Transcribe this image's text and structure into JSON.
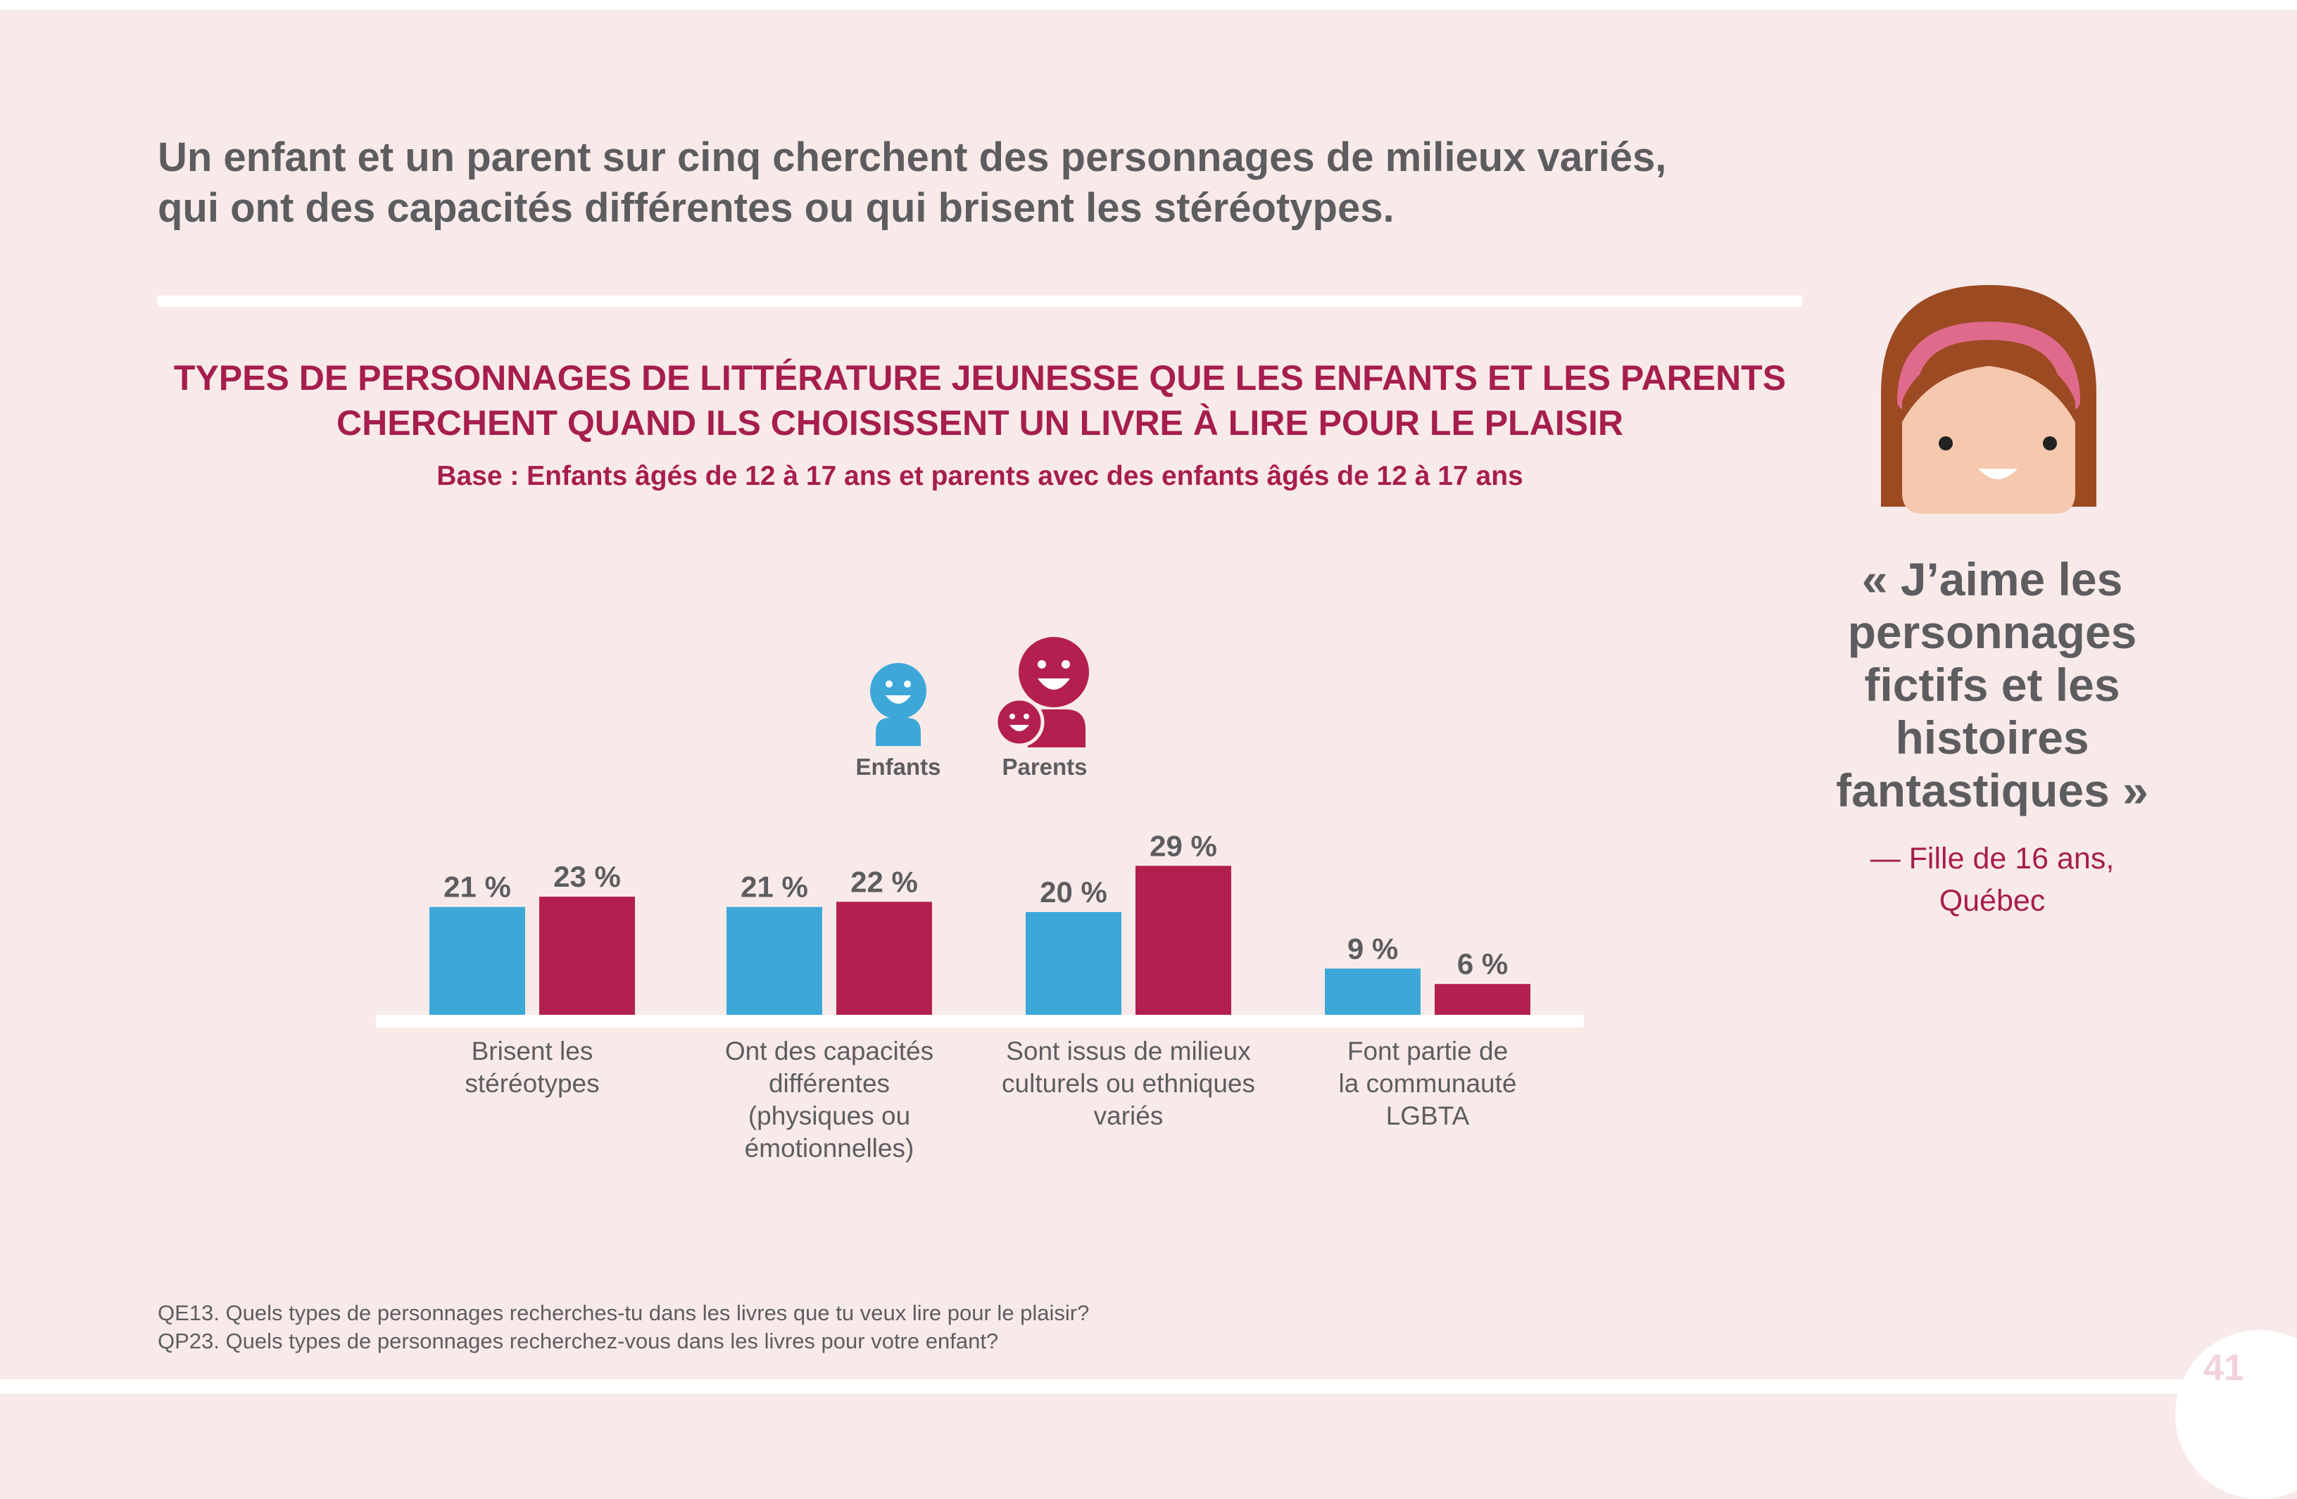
{
  "headline": {
    "line1": "Un enfant et un parent sur cinq cherchent des personnages de milieux variés,",
    "line2": "qui ont des capacités différentes ou qui brisent les stéréotypes."
  },
  "legend": {
    "enfants": "Enfants",
    "parents": "Parents"
  },
  "colors": {
    "enfants": "#3da8d8",
    "parents": "#b3204f",
    "title": "#a61e4d",
    "text": "#5d5d5f",
    "background": "#f9eaea"
  },
  "quote": {
    "lines": [
      "« J’aime les",
      "personnages",
      "fictifs et les",
      "histoires",
      "fantastiques »"
    ],
    "attribution_line1": "— Fille de 16 ans,",
    "attribution_line2": "Québec"
  },
  "footnotes": {
    "qe13": "QE13. Quels types de personnages recherches-tu dans les livres que tu veux lire pour le plaisir?",
    "qp23": "QP23. Quels types de personnages recherchez-vous dans les livres pour votre enfant?"
  },
  "page_number": "41",
  "icons": {
    "enfants": "child-face-icon",
    "parents": "parent-child-faces-icon",
    "avatar": "girl-avatar-icon"
  },
  "chart_data": {
    "type": "bar",
    "title_line1": "TYPES DE PERSONNAGES DE LITTÉRATURE JEUNESSE QUE LES ENFANTS ET LES PARENTS",
    "title_line2": "CHERCHENT QUAND ILS CHOISISSENT UN LIVRE À LIRE POUR LE PLAISIR",
    "subtitle": "Base : Enfants âgés de 12 à 17 ans et parents avec des enfants âgés de 12 à 17 ans",
    "categories": [
      [
        "Brisent les",
        "stéréotypes"
      ],
      [
        "Ont des capacités",
        "différentes",
        "(physiques ou",
        "émotionnelles)"
      ],
      [
        "Sont issus de milieux",
        "culturels ou ethniques",
        "variés"
      ],
      [
        "Font partie de",
        "la communauté",
        "LGBTA"
      ]
    ],
    "series": [
      {
        "name": "Enfants",
        "values": [
          21,
          21,
          20,
          9
        ],
        "labels": [
          "21 %",
          "21 %",
          "20 %",
          "9 %"
        ]
      },
      {
        "name": "Parents",
        "values": [
          23,
          22,
          29,
          6
        ],
        "labels": [
          "23 %",
          "22 %",
          "29 %",
          "6 %"
        ]
      }
    ],
    "ylim": [
      0,
      30
    ],
    "grid": false
  }
}
